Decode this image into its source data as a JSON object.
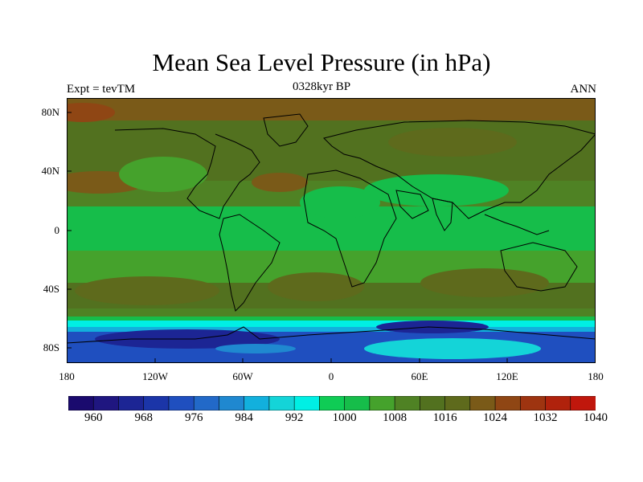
{
  "header": {
    "title": "Mean Sea Level Pressure (in hPa)",
    "subtitle": "0328kyr BP",
    "left_tag": "Expt = tevTM",
    "right_tag": "ANN"
  },
  "axes": {
    "y_ticks": [
      "80N",
      "40N",
      "0",
      "40S",
      "80S"
    ],
    "x_ticks": [
      "180",
      "120W",
      "60W",
      "0",
      "60E",
      "120E",
      "180"
    ]
  },
  "colorbar": {
    "labels": [
      "960",
      "968",
      "976",
      "984",
      "992",
      "1000",
      "1008",
      "1016",
      "1024",
      "1032",
      "1040"
    ],
    "colors": [
      "#1a0a6e",
      "#1f1680",
      "#1c2594",
      "#1b35a8",
      "#1f4fbf",
      "#2269c8",
      "#1f88d0",
      "#12b0dd",
      "#14d4d8",
      "#00efe4",
      "#0fcc55",
      "#16bd4a",
      "#45a22c",
      "#4f8224",
      "#52711f",
      "#5e6a1c",
      "#7a5a18",
      "#8f4614",
      "#9e3410",
      "#b0220c",
      "#c0170c"
    ]
  },
  "chart_data": {
    "type": "heatmap",
    "title": "Mean Sea Level Pressure (in hPa)",
    "subtitle": "0328kyr BP",
    "lon_range": [
      -180,
      180
    ],
    "lat_range": [
      -90,
      90
    ],
    "value_range": [
      956,
      1044
    ],
    "contour_interval": 4,
    "zonal_pattern": [
      {
        "lat": 80,
        "value": 1024
      },
      {
        "lat": 60,
        "value": 1018
      },
      {
        "lat": 40,
        "value": 1016
      },
      {
        "lat": 30,
        "value": 1022
      },
      {
        "lat": 10,
        "value": 1010
      },
      {
        "lat": 0,
        "value": 1008
      },
      {
        "lat": -20,
        "value": 1014
      },
      {
        "lat": -35,
        "value": 1018
      },
      {
        "lat": -45,
        "value": 1010
      },
      {
        "lat": -55,
        "value": 996
      },
      {
        "lat": -65,
        "value": 980
      },
      {
        "lat": -75,
        "value": 990
      },
      {
        "lat": -85,
        "value": 1000
      }
    ]
  }
}
